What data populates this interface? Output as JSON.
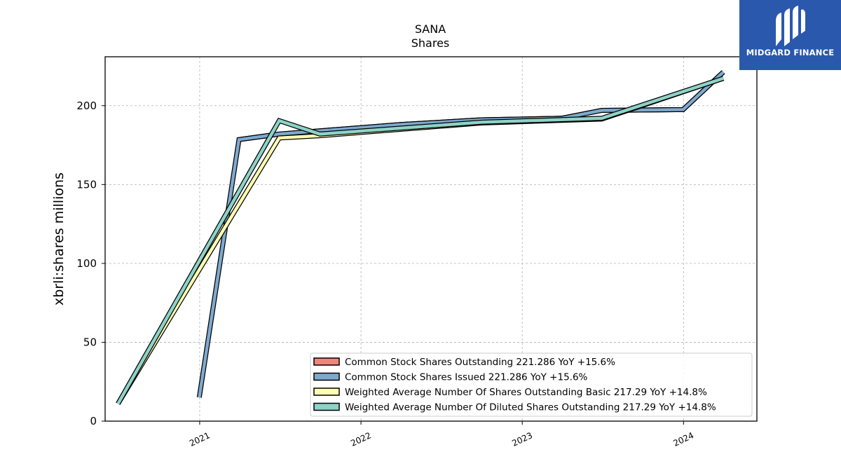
{
  "brand": {
    "name": "MIDGARD FINANCE",
    "logo_icon": "midgard-logo-icon",
    "background": "#2a58ad"
  },
  "chart_data": {
    "type": "line",
    "title": "SANA",
    "subtitle": "Shares",
    "ylabel": "xbrli:shares millions",
    "xlabel": "",
    "ylim": [
      0,
      231
    ],
    "yticks": [
      0,
      50,
      100,
      150,
      200
    ],
    "xlim": [
      "2020-06-01",
      "2024-06-15"
    ],
    "xticks": [
      {
        "date": "2021-01-01",
        "label": "2021"
      },
      {
        "date": "2022-01-01",
        "label": "2022"
      },
      {
        "date": "2023-01-01",
        "label": "2023"
      },
      {
        "date": "2024-01-01",
        "label": "2024"
      }
    ],
    "grid": true,
    "legend_position": "bottom-right",
    "series": [
      {
        "name": "Common Stock Shares Outstanding  221.286 YoY +15.6%",
        "color": "#f4837a",
        "points": [
          {
            "date": "2021-03-31",
            "value": 178.5
          },
          {
            "date": "2021-06-30",
            "value": 182.0
          },
          {
            "date": "2021-09-30",
            "value": 184.0
          },
          {
            "date": "2022-03-31",
            "value": 188.0
          },
          {
            "date": "2022-09-30",
            "value": 191.0
          },
          {
            "date": "2023-03-31",
            "value": 192.0
          },
          {
            "date": "2023-06-30",
            "value": 197.0
          },
          {
            "date": "2023-12-31",
            "value": 197.5
          },
          {
            "date": "2024-03-31",
            "value": 221.3
          }
        ]
      },
      {
        "name": "Common Stock Shares Issued  221.286 YoY +15.6%",
        "color": "#7ea9cf",
        "points": [
          {
            "date": "2020-12-31",
            "value": 15.0
          },
          {
            "date": "2021-03-31",
            "value": 178.5
          },
          {
            "date": "2021-06-30",
            "value": 182.0
          },
          {
            "date": "2021-09-30",
            "value": 184.0
          },
          {
            "date": "2022-03-31",
            "value": 188.0
          },
          {
            "date": "2022-09-30",
            "value": 191.0
          },
          {
            "date": "2023-03-31",
            "value": 192.0
          },
          {
            "date": "2023-06-30",
            "value": 197.0
          },
          {
            "date": "2023-12-31",
            "value": 197.5
          },
          {
            "date": "2024-03-31",
            "value": 221.3
          }
        ]
      },
      {
        "name": "Weighted Average Number Of Shares Outstanding Basic  217.29 YoY +14.8%",
        "color": "#ffffb3",
        "points": [
          {
            "date": "2020-06-30",
            "value": 11.0
          },
          {
            "date": "2021-06-30",
            "value": 179.5
          },
          {
            "date": "2021-09-30",
            "value": 181.0
          },
          {
            "date": "2022-09-30",
            "value": 189.0
          },
          {
            "date": "2023-06-30",
            "value": 191.5
          },
          {
            "date": "2024-03-31",
            "value": 217.3
          }
        ]
      },
      {
        "name": "Weighted Average Number Of Diluted Shares Outstanding  217.29 YoY +14.8%",
        "color": "#8dd3c7",
        "points": [
          {
            "date": "2020-06-30",
            "value": 11.0
          },
          {
            "date": "2021-06-30",
            "value": 190.5
          },
          {
            "date": "2021-09-30",
            "value": 182.0
          },
          {
            "date": "2022-09-30",
            "value": 189.5
          },
          {
            "date": "2023-06-30",
            "value": 192.0
          },
          {
            "date": "2024-03-31",
            "value": 217.3
          }
        ]
      }
    ]
  }
}
